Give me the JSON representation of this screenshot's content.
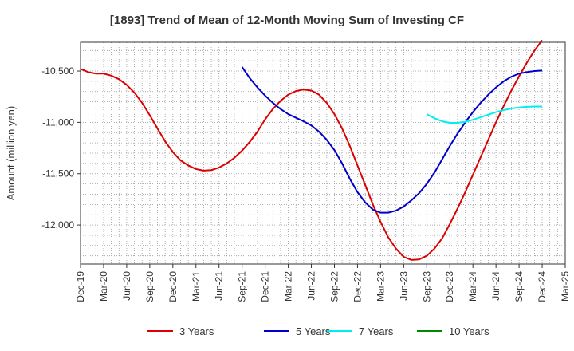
{
  "chart_data": {
    "type": "line",
    "title": "[1893]  Trend of Mean of 12-Month Moving Sum of Investing CF",
    "xlabel": "",
    "ylabel": "Amount (million yen)",
    "ylim": [
      -12380,
      -10220
    ],
    "yticks": [
      -10500,
      -11000,
      -11500,
      -12000
    ],
    "ytick_labels": [
      "-10,500",
      "-11,000",
      "-11,500",
      "-12,000"
    ],
    "x_tick_labels": [
      "Dec-19",
      "Mar-20",
      "Jun-20",
      "Sep-20",
      "Dec-20",
      "Mar-21",
      "Jun-21",
      "Sep-21",
      "Dec-21",
      "Mar-22",
      "Jun-22",
      "Sep-22",
      "Dec-22",
      "Mar-23",
      "Jun-23",
      "Sep-23",
      "Dec-23",
      "Mar-24",
      "Jun-24",
      "Sep-24",
      "Dec-24",
      "Mar-25"
    ],
    "grid": true,
    "legend_position": "bottom",
    "series": [
      {
        "name": "3 Years",
        "color": "#dd0000",
        "start_month": 0,
        "values": [
          -10480,
          -10510,
          -10525,
          -10525,
          -10545,
          -10580,
          -10635,
          -10710,
          -10810,
          -10930,
          -11060,
          -11185,
          -11290,
          -11370,
          -11420,
          -11455,
          -11470,
          -11465,
          -11440,
          -11400,
          -11345,
          -11275,
          -11190,
          -11090,
          -10970,
          -10870,
          -10790,
          -10730,
          -10695,
          -10680,
          -10690,
          -10730,
          -10810,
          -10920,
          -11060,
          -11230,
          -11420,
          -11610,
          -11800,
          -11970,
          -12120,
          -12230,
          -12310,
          -12340,
          -12335,
          -12300,
          -12230,
          -12130,
          -11990,
          -11840,
          -11680,
          -11510,
          -11340,
          -11170,
          -11000,
          -10840,
          -10690,
          -10550,
          -10420,
          -10300,
          -10200
        ]
      },
      {
        "name": "5 Years",
        "color": "#0000cc",
        "start_month": 21,
        "values": [
          -10460,
          -10570,
          -10660,
          -10740,
          -10810,
          -10870,
          -10920,
          -10955,
          -10990,
          -11030,
          -11090,
          -11170,
          -11270,
          -11400,
          -11550,
          -11680,
          -11780,
          -11850,
          -11880,
          -11880,
          -11860,
          -11820,
          -11760,
          -11690,
          -11600,
          -11490,
          -11360,
          -11230,
          -11110,
          -11000,
          -10900,
          -10810,
          -10730,
          -10660,
          -10600,
          -10555,
          -10525,
          -10510,
          -10500,
          -10495
        ]
      },
      {
        "name": "7 Years",
        "color": "#00eeee",
        "start_month": 45,
        "values": [
          -10920,
          -10960,
          -10990,
          -11005,
          -11005,
          -10995,
          -10975,
          -10950,
          -10925,
          -10900,
          -10880,
          -10865,
          -10855,
          -10848,
          -10845,
          -10845
        ]
      },
      {
        "name": "10 Years",
        "color": "#008800",
        "start_month": 0,
        "values": []
      }
    ]
  }
}
